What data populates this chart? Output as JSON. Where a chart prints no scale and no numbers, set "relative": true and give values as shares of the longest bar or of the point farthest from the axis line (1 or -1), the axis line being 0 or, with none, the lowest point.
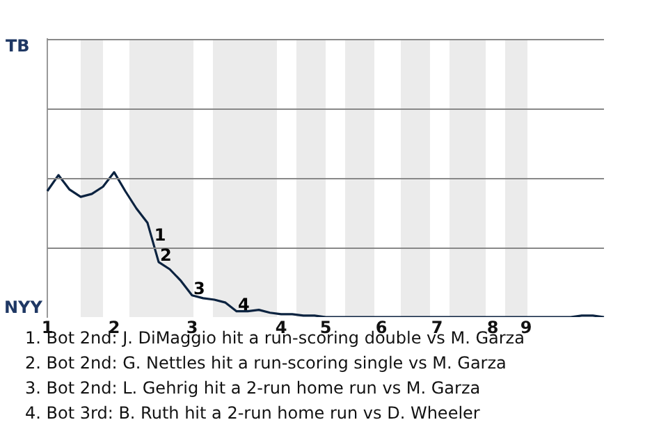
{
  "chart_data": {
    "type": "line",
    "relative": true,
    "categories": [
      "1",
      null,
      null,
      null,
      null,
      null,
      "2",
      null,
      null,
      null,
      null,
      null,
      null,
      "3",
      null,
      null,
      null,
      null,
      null,
      null,
      null,
      "4",
      null,
      null,
      null,
      "5",
      null,
      null,
      null,
      null,
      "6",
      null,
      null,
      null,
      null,
      "7",
      null,
      null,
      null,
      null,
      "8",
      null,
      null,
      "9",
      null,
      null,
      null,
      null,
      null,
      null,
      null
    ],
    "legend": false,
    "ref_lines": [
      {
        "axis": "y",
        "value": 0.48,
        "color": "#888888"
      },
      {
        "axis": "y",
        "value": 0.96,
        "color": "#888888"
      },
      {
        "axis": "y",
        "value": 1.44,
        "color": "#888888"
      },
      {
        "axis": "y",
        "value": 1.92,
        "color": "#888888"
      }
    ],
    "marker": "none",
    "line_style": "solid",
    "series": [
      {
        "color": "#0c2340",
        "values": [
          0.87,
          0.98,
          0.88,
          0.83,
          0.85,
          0.9,
          1,
          0.87,
          0.75,
          0.65,
          0.38,
          0.33,
          0.25,
          0.15,
          0.13,
          0.12,
          0.1,
          0.04,
          0.04,
          0.05,
          0.03,
          0.02,
          0.02,
          0.01,
          0.01,
          0,
          0,
          0,
          0,
          0,
          0,
          0,
          0,
          0,
          0,
          0,
          0,
          0,
          0,
          0,
          0,
          0,
          0,
          0,
          0,
          0,
          0,
          0,
          0.01,
          0.01,
          0
        ]
      }
    ],
    "annotations": [
      "TB",
      "NYY",
      {
        "text": "1",
        "y": 0.52
      },
      {
        "text": "2",
        "y": 0.38
      },
      {
        "text": "3",
        "y": 0.15
      },
      {
        "text": "4",
        "y": 0.04
      },
      "1. Bot 2nd: J. DiMaggio hit a run-scoring double vs M. Garza",
      "2. Bot 2nd: G. Nettles hit a run-scoring single vs M. Garza",
      "3. Bot 2nd: L. Gehrig hit a 2-run home run vs M. Garza",
      "4. Bot 3rd: B. Ruth hit a 2-run home run vs D. Wheeler"
    ]
  }
}
